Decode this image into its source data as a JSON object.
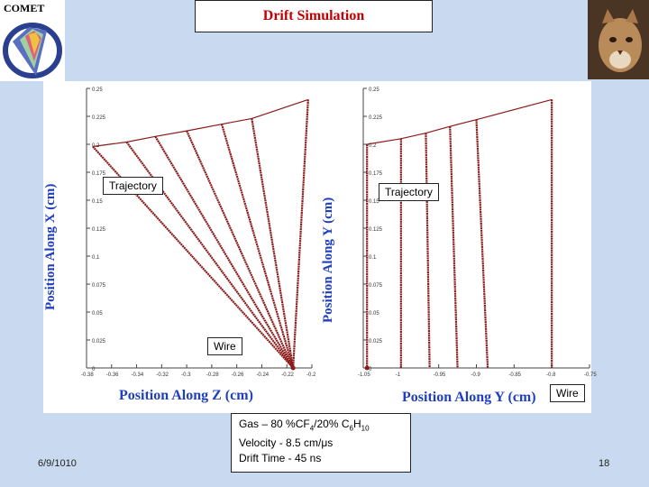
{
  "header": {
    "logo_text": "COMET",
    "title": "Drift Simulation"
  },
  "colors": {
    "background": "#c9d9ef",
    "title_text": "#c00000",
    "axis_label": "#1f3fbf",
    "trajectory": "#8b1a1a"
  },
  "left_plot": {
    "ylabel": "Position Along X (cm)",
    "xlabel": "Position Along Z (cm)",
    "callout_trajectory": "Trajectory",
    "callout_wire": "Wire"
  },
  "right_plot": {
    "ylabel": "Position Along Y (cm)",
    "xlabel": "Position Along Y (cm)",
    "callout_trajectory": "Trajectory",
    "callout_wire": "Wire"
  },
  "info": {
    "gas_prefix": "Gas – 80 %CF",
    "gas_sub1": "4",
    "gas_mid": "/20% C",
    "gas_sub2": "6",
    "gas_h": "H",
    "gas_sub3": "10",
    "velocity": "Velocity - 8.5 cm/μs",
    "drift_time": "Drift Time  - 45 ns"
  },
  "footer": {
    "date": "6/9/1010",
    "page_number": "18"
  },
  "chart_data": [
    {
      "type": "line",
      "title": "",
      "xlabel": "Position Along Z (cm)",
      "ylabel": "Position Along X (cm)",
      "xlim": [
        -0.38,
        -0.2
      ],
      "ylim": [
        0,
        0.25
      ],
      "x_ticks": [
        "-0.38",
        "-0.36",
        "-0.34",
        "-0.32",
        "-0.3",
        "-0.28",
        "-0.26",
        "-0.24",
        "-0.22",
        "-0.2"
      ],
      "y_ticks": [
        "0",
        "0.025",
        "0.05",
        "0.075",
        "0.1",
        "0.125",
        "0.15",
        "0.175",
        "0.2",
        "0.225",
        "0.25"
      ],
      "wire": [
        -0.215,
        0.0
      ],
      "series": [
        {
          "values": [
            [
              -0.375,
              0.198
            ],
            [
              -0.215,
              0.0
            ]
          ]
        },
        {
          "values": [
            [
              -0.348,
              0.202
            ],
            [
              -0.215,
              0.0
            ]
          ]
        },
        {
          "values": [
            [
              -0.325,
              0.207
            ],
            [
              -0.215,
              0.0
            ]
          ]
        },
        {
          "values": [
            [
              -0.3,
              0.212
            ],
            [
              -0.215,
              0.0
            ]
          ]
        },
        {
          "values": [
            [
              -0.272,
              0.218
            ],
            [
              -0.215,
              0.0
            ]
          ]
        },
        {
          "values": [
            [
              -0.248,
              0.223
            ],
            [
              -0.215,
              0.0
            ]
          ]
        },
        {
          "values": [
            [
              -0.203,
              0.24
            ],
            [
              -0.215,
              0.0
            ]
          ]
        }
      ],
      "grid": false
    },
    {
      "type": "line",
      "title": "",
      "xlabel": "Position Along Y (cm)",
      "ylabel": "Position Along Y (cm)",
      "xlim": [
        -1.05,
        -0.75
      ],
      "ylim": [
        0,
        0.25
      ],
      "x_ticks": [
        "-1.05",
        "-1",
        "-0.95",
        "-0.9",
        "-0.85",
        "-0.8",
        "-0.75"
      ],
      "y_ticks": [
        "0",
        "0.025",
        "0.05",
        "0.075",
        "0.1",
        "0.125",
        "0.15",
        "0.175",
        "0.2",
        "0.225",
        "0.25"
      ],
      "wire": [
        -1.045,
        0.0
      ],
      "series": [
        {
          "values": [
            [
              -1.045,
              0.2
            ],
            [
              -1.045,
              0.0
            ]
          ]
        },
        {
          "values": [
            [
              -1.0,
              0.205
            ],
            [
              -1.0,
              0.0
            ]
          ]
        },
        {
          "values": [
            [
              -0.967,
              0.21
            ],
            [
              -0.962,
              0.0
            ]
          ]
        },
        {
          "values": [
            [
              -0.935,
              0.216
            ],
            [
              -0.925,
              0.0
            ]
          ]
        },
        {
          "values": [
            [
              -0.9,
              0.222
            ],
            [
              -0.885,
              0.0
            ]
          ]
        },
        {
          "values": [
            [
              -0.8,
              0.24
            ],
            [
              -0.8,
              0.0
            ]
          ]
        }
      ],
      "grid": false
    }
  ]
}
